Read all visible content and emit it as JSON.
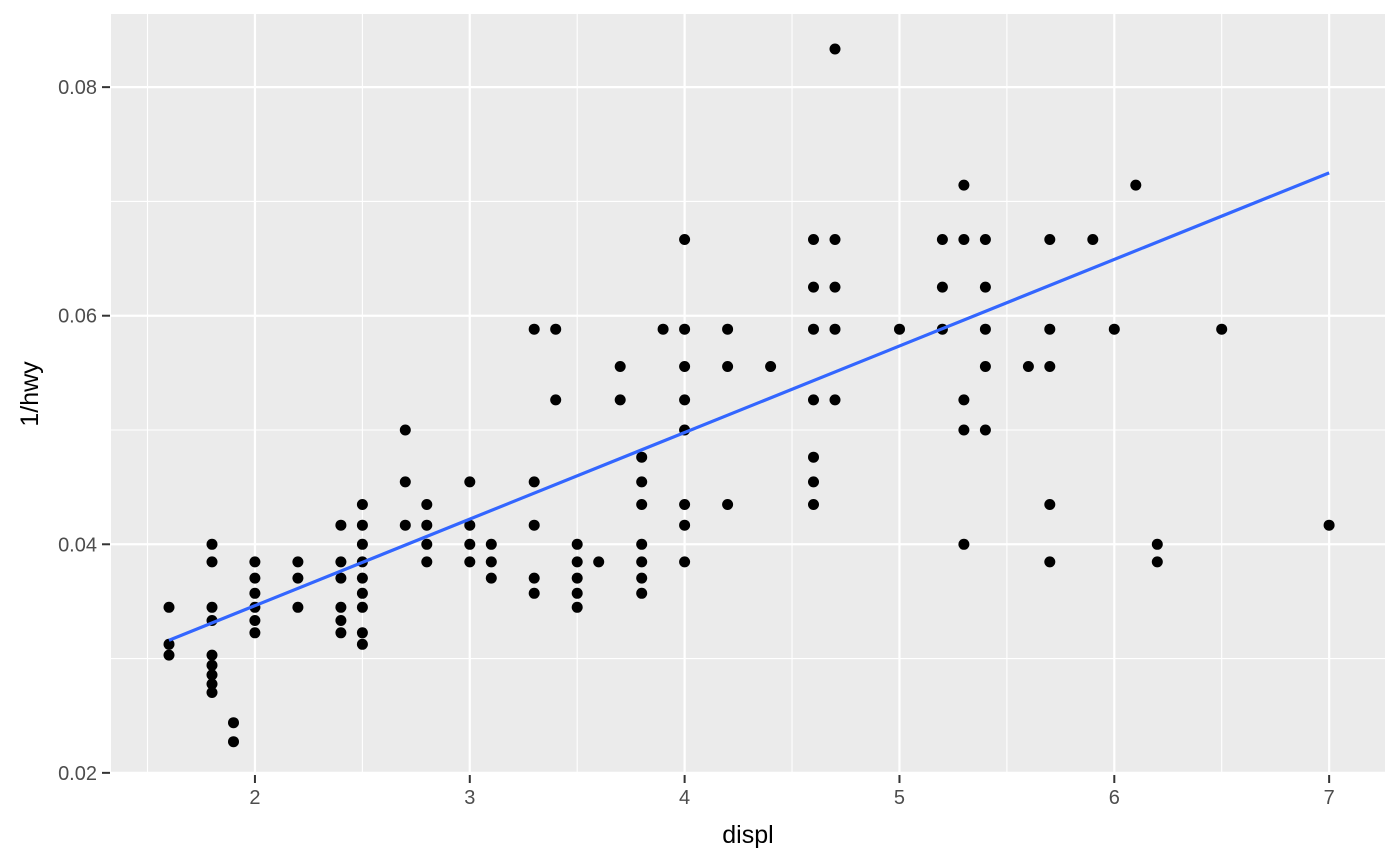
{
  "chart_data": {
    "type": "scatter",
    "title": "",
    "xlabel": "displ",
    "ylabel": "1/hwy",
    "x_ticks": [
      2,
      3,
      4,
      5,
      6,
      7
    ],
    "x_tick_labels": [
      "2",
      "3",
      "4",
      "5",
      "6",
      "7"
    ],
    "y_ticks": [
      0.02,
      0.04,
      0.06,
      0.08
    ],
    "y_tick_labels": [
      "0.02",
      "0.04",
      "0.06",
      "0.08"
    ],
    "x_minor_breaks": [
      1.5,
      2.5,
      3.5,
      4.5,
      5.5,
      6.5
    ],
    "y_minor_breaks": [
      0.03,
      0.05,
      0.07
    ],
    "xlim": [
      1.33,
      7.26
    ],
    "ylim": [
      0.0199,
      0.0864
    ],
    "grid": true,
    "legend_position": "none",
    "y_transform": "y = 1/hwy",
    "points_displ_hwy": [
      [
        1.6,
        29
      ],
      [
        1.6,
        32
      ],
      [
        1.6,
        33
      ],
      [
        1.8,
        25
      ],
      [
        1.8,
        26
      ],
      [
        1.8,
        29
      ],
      [
        1.8,
        30
      ],
      [
        1.8,
        33
      ],
      [
        1.8,
        34
      ],
      [
        1.8,
        35
      ],
      [
        1.8,
        36
      ],
      [
        1.8,
        37
      ],
      [
        1.9,
        41
      ],
      [
        1.9,
        44
      ],
      [
        2.0,
        26
      ],
      [
        2.0,
        27
      ],
      [
        2.0,
        28
      ],
      [
        2.0,
        29
      ],
      [
        2.0,
        30
      ],
      [
        2.0,
        31
      ],
      [
        2.2,
        26
      ],
      [
        2.2,
        27
      ],
      [
        2.2,
        29
      ],
      [
        2.4,
        24
      ],
      [
        2.4,
        26
      ],
      [
        2.4,
        27
      ],
      [
        2.4,
        29
      ],
      [
        2.4,
        30
      ],
      [
        2.4,
        31
      ],
      [
        2.5,
        23
      ],
      [
        2.5,
        24
      ],
      [
        2.5,
        25
      ],
      [
        2.5,
        26
      ],
      [
        2.5,
        27
      ],
      [
        2.5,
        28
      ],
      [
        2.5,
        29
      ],
      [
        2.5,
        31
      ],
      [
        2.5,
        32
      ],
      [
        2.7,
        20
      ],
      [
        2.7,
        22
      ],
      [
        2.7,
        24
      ],
      [
        2.8,
        23
      ],
      [
        2.8,
        24
      ],
      [
        2.8,
        25
      ],
      [
        2.8,
        26
      ],
      [
        3.0,
        22
      ],
      [
        3.0,
        24
      ],
      [
        3.0,
        25
      ],
      [
        3.0,
        26
      ],
      [
        3.1,
        25
      ],
      [
        3.1,
        26
      ],
      [
        3.1,
        27
      ],
      [
        3.3,
        17
      ],
      [
        3.3,
        22
      ],
      [
        3.3,
        24
      ],
      [
        3.3,
        27
      ],
      [
        3.3,
        28
      ],
      [
        3.4,
        17
      ],
      [
        3.4,
        19
      ],
      [
        3.5,
        25
      ],
      [
        3.5,
        26
      ],
      [
        3.5,
        27
      ],
      [
        3.5,
        28
      ],
      [
        3.5,
        29
      ],
      [
        3.6,
        26
      ],
      [
        3.7,
        18
      ],
      [
        3.7,
        19
      ],
      [
        3.8,
        21
      ],
      [
        3.8,
        22
      ],
      [
        3.8,
        23
      ],
      [
        3.8,
        25
      ],
      [
        3.8,
        26
      ],
      [
        3.8,
        27
      ],
      [
        3.8,
        28
      ],
      [
        3.9,
        17
      ],
      [
        4.0,
        15
      ],
      [
        4.0,
        17
      ],
      [
        4.0,
        18
      ],
      [
        4.0,
        19
      ],
      [
        4.0,
        20
      ],
      [
        4.0,
        23
      ],
      [
        4.0,
        24
      ],
      [
        4.0,
        26
      ],
      [
        4.2,
        17
      ],
      [
        4.2,
        18
      ],
      [
        4.2,
        23
      ],
      [
        4.4,
        18
      ],
      [
        4.6,
        15
      ],
      [
        4.6,
        16
      ],
      [
        4.6,
        17
      ],
      [
        4.6,
        19
      ],
      [
        4.6,
        21
      ],
      [
        4.6,
        22
      ],
      [
        4.6,
        23
      ],
      [
        4.7,
        12
      ],
      [
        4.7,
        15
      ],
      [
        4.7,
        16
      ],
      [
        4.7,
        17
      ],
      [
        4.7,
        19
      ],
      [
        5.0,
        17
      ],
      [
        5.2,
        15
      ],
      [
        5.2,
        16
      ],
      [
        5.2,
        17
      ],
      [
        5.3,
        14
      ],
      [
        5.3,
        15
      ],
      [
        5.3,
        19
      ],
      [
        5.3,
        20
      ],
      [
        5.3,
        25
      ],
      [
        5.4,
        15
      ],
      [
        5.4,
        16
      ],
      [
        5.4,
        17
      ],
      [
        5.4,
        18
      ],
      [
        5.4,
        20
      ],
      [
        5.6,
        18
      ],
      [
        5.7,
        15
      ],
      [
        5.7,
        17
      ],
      [
        5.7,
        18
      ],
      [
        5.7,
        23
      ],
      [
        5.7,
        26
      ],
      [
        5.9,
        15
      ],
      [
        6.0,
        17
      ],
      [
        6.1,
        14
      ],
      [
        6.2,
        25
      ],
      [
        6.2,
        26
      ],
      [
        6.5,
        17
      ],
      [
        7.0,
        24
      ]
    ],
    "trend_line": {
      "fit": "linear",
      "x1": 1.6,
      "y1": 0.0316,
      "x2": 7.0,
      "y2": 0.0725
    }
  },
  "style": {
    "background": "#FFFFFF",
    "panel_bg": "#EBEBEB",
    "grid_color": "#FFFFFF",
    "point_color": "#000000",
    "trend_line_color": "#3366FF",
    "tick_label_color": "#4D4D4D",
    "axis_title_color": "#000000",
    "tick_mark_color": "#333333"
  }
}
